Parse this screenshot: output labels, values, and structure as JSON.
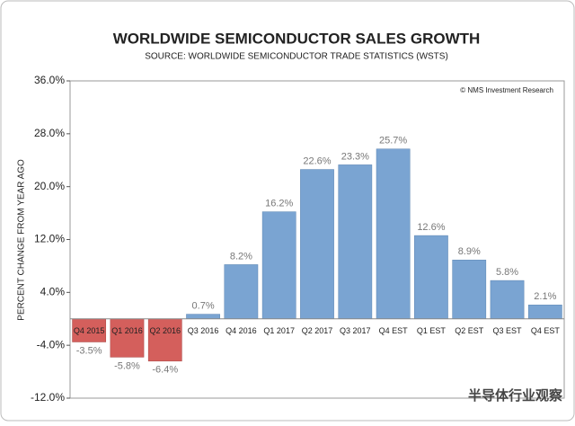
{
  "chart_data": {
    "type": "bar",
    "title": "WORLDWIDE SEMICONDUCTOR SALES GROWTH",
    "subtitle": "SOURCE: WORLDWIDE SEMICONDUCTOR TRADE STATISTICS (WSTS)",
    "y_label": "PERCENT CHANGE FROM YEAR AGO",
    "annotation": "© NMS Investment Research",
    "watermark": "半导体行业观察",
    "categories": [
      "Q4 2015",
      "Q1 2016",
      "Q2 2016",
      "Q3 2016",
      "Q4 2016",
      "Q1 2017",
      "Q2 2017",
      "Q3 2017",
      "Q4 EST",
      "Q1 EST",
      "Q2 EST",
      "Q3 EST",
      "Q4 EST"
    ],
    "values": [
      -3.5,
      -5.8,
      -6.4,
      0.7,
      8.2,
      16.2,
      22.6,
      23.3,
      25.7,
      12.6,
      8.9,
      5.8,
      2.1
    ],
    "value_labels": [
      "-3.5%",
      "-5.8%",
      "-6.4%",
      "0.7%",
      "8.2%",
      "16.2%",
      "22.6%",
      "23.3%",
      "25.7%",
      "12.6%",
      "8.9%",
      "5.8%",
      "2.1%"
    ],
    "color": "#7aa4d2",
    "negative_color": "#d45f5c",
    "ylim": [
      -12,
      36
    ],
    "yticks": [
      {
        "value": 36,
        "label": "36.0%"
      },
      {
        "value": 28,
        "label": "28.0%"
      },
      {
        "value": 20,
        "label": "20.0%"
      },
      {
        "value": 12,
        "label": "12.0%"
      },
      {
        "value": 4,
        "label": "4.0%"
      },
      {
        "value": -4,
        "label": "-4.0%"
      },
      {
        "value": -12,
        "label": "-12.0%"
      }
    ]
  }
}
